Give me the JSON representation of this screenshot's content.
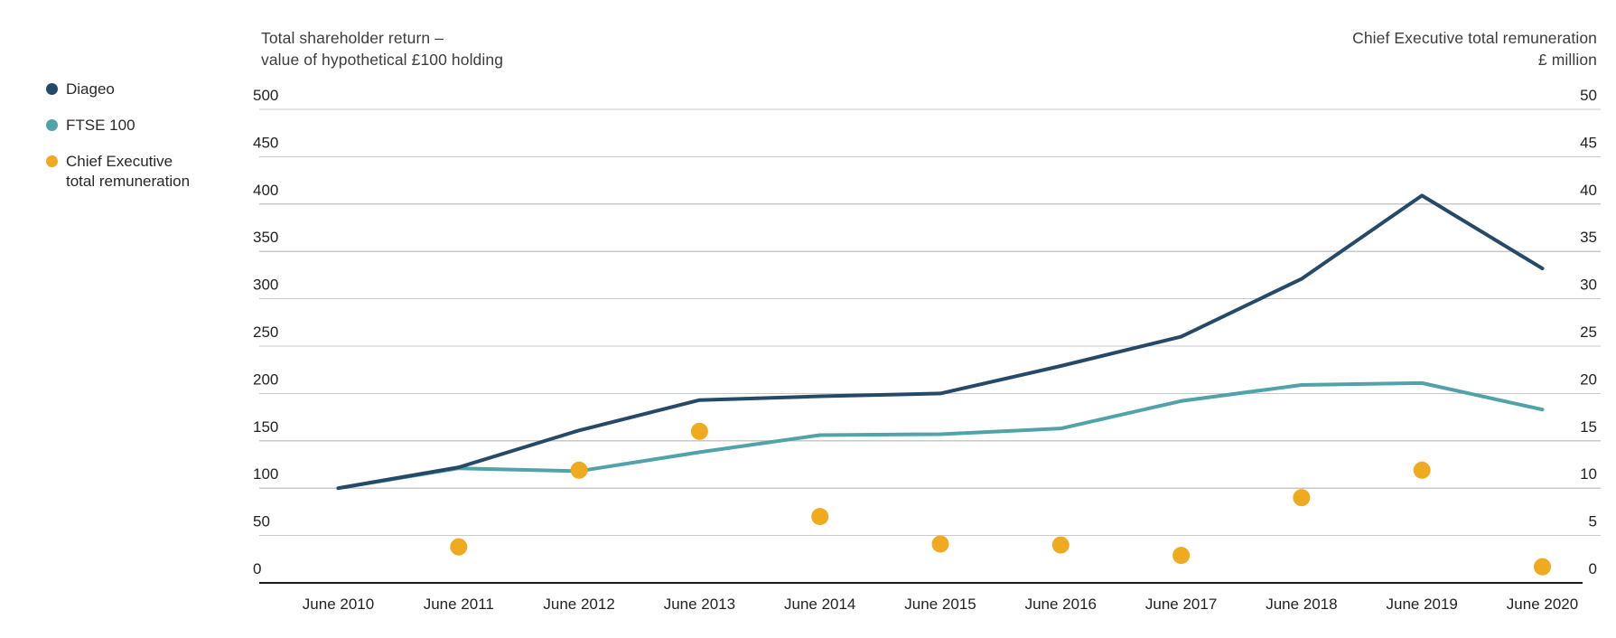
{
  "left_axis_title_line1": "Total shareholder return –",
  "left_axis_title_line2": "value of hypothetical £100 holding",
  "right_axis_title_line1": "Chief Executive total remuneration",
  "right_axis_title_line2": "£ million",
  "legend": {
    "items": [
      {
        "label": "Diageo",
        "color": "#254a68"
      },
      {
        "label": "FTSE 100",
        "color": "#4fa3a9"
      },
      {
        "label": "Chief Executive\ntotal remuneration",
        "color": "#efaa1f"
      }
    ]
  },
  "colors": {
    "diageo_line": "#254a68",
    "ftse_line": "#4fa3a9",
    "ceo_dot": "#efaa1f",
    "gridline": "#c9c9c9",
    "axis_line": "#1a1a1a",
    "text": "#232325"
  },
  "chart_data": {
    "type": "line",
    "title": "Total shareholder return – value of hypothetical £100 holding vs Chief Executive total remuneration (£ million)",
    "categories": [
      "June 2010",
      "June 2011",
      "June 2012",
      "June 2013",
      "June 2014",
      "June 2015",
      "June 2016",
      "June 2017",
      "June 2018",
      "June 2019",
      "June 2020"
    ],
    "series": [
      {
        "name": "Diageo",
        "type": "line",
        "axis": "left",
        "color": "#254a68",
        "values": [
          100,
          122,
          161,
          193,
          197,
          200,
          229,
          260,
          321,
          409,
          332
        ]
      },
      {
        "name": "FTSE 100",
        "type": "line",
        "axis": "left",
        "color": "#4fa3a9",
        "values": [
          100,
          121,
          118,
          138,
          156,
          157,
          163,
          192,
          209,
          211,
          183
        ]
      },
      {
        "name": "Chief Executive total remuneration",
        "type": "scatter",
        "axis": "right",
        "color": "#efaa1f",
        "values": [
          null,
          3.8,
          11.9,
          16.0,
          7.0,
          4.1,
          4.0,
          2.9,
          9.0,
          11.9,
          1.7
        ]
      }
    ],
    "left_axis": {
      "label": "Total shareholder return – value of hypothetical £100 holding",
      "ticks": [
        500,
        450,
        400,
        350,
        300,
        250,
        200,
        150,
        100,
        50,
        0
      ],
      "range": [
        0,
        500
      ]
    },
    "right_axis": {
      "label": "Chief Executive total remuneration £ million",
      "ticks": [
        50,
        45,
        40,
        35,
        30,
        25,
        20,
        15,
        10,
        5,
        0
      ],
      "range": [
        0,
        50
      ]
    },
    "grid": true,
    "legend_position": "top-left"
  }
}
